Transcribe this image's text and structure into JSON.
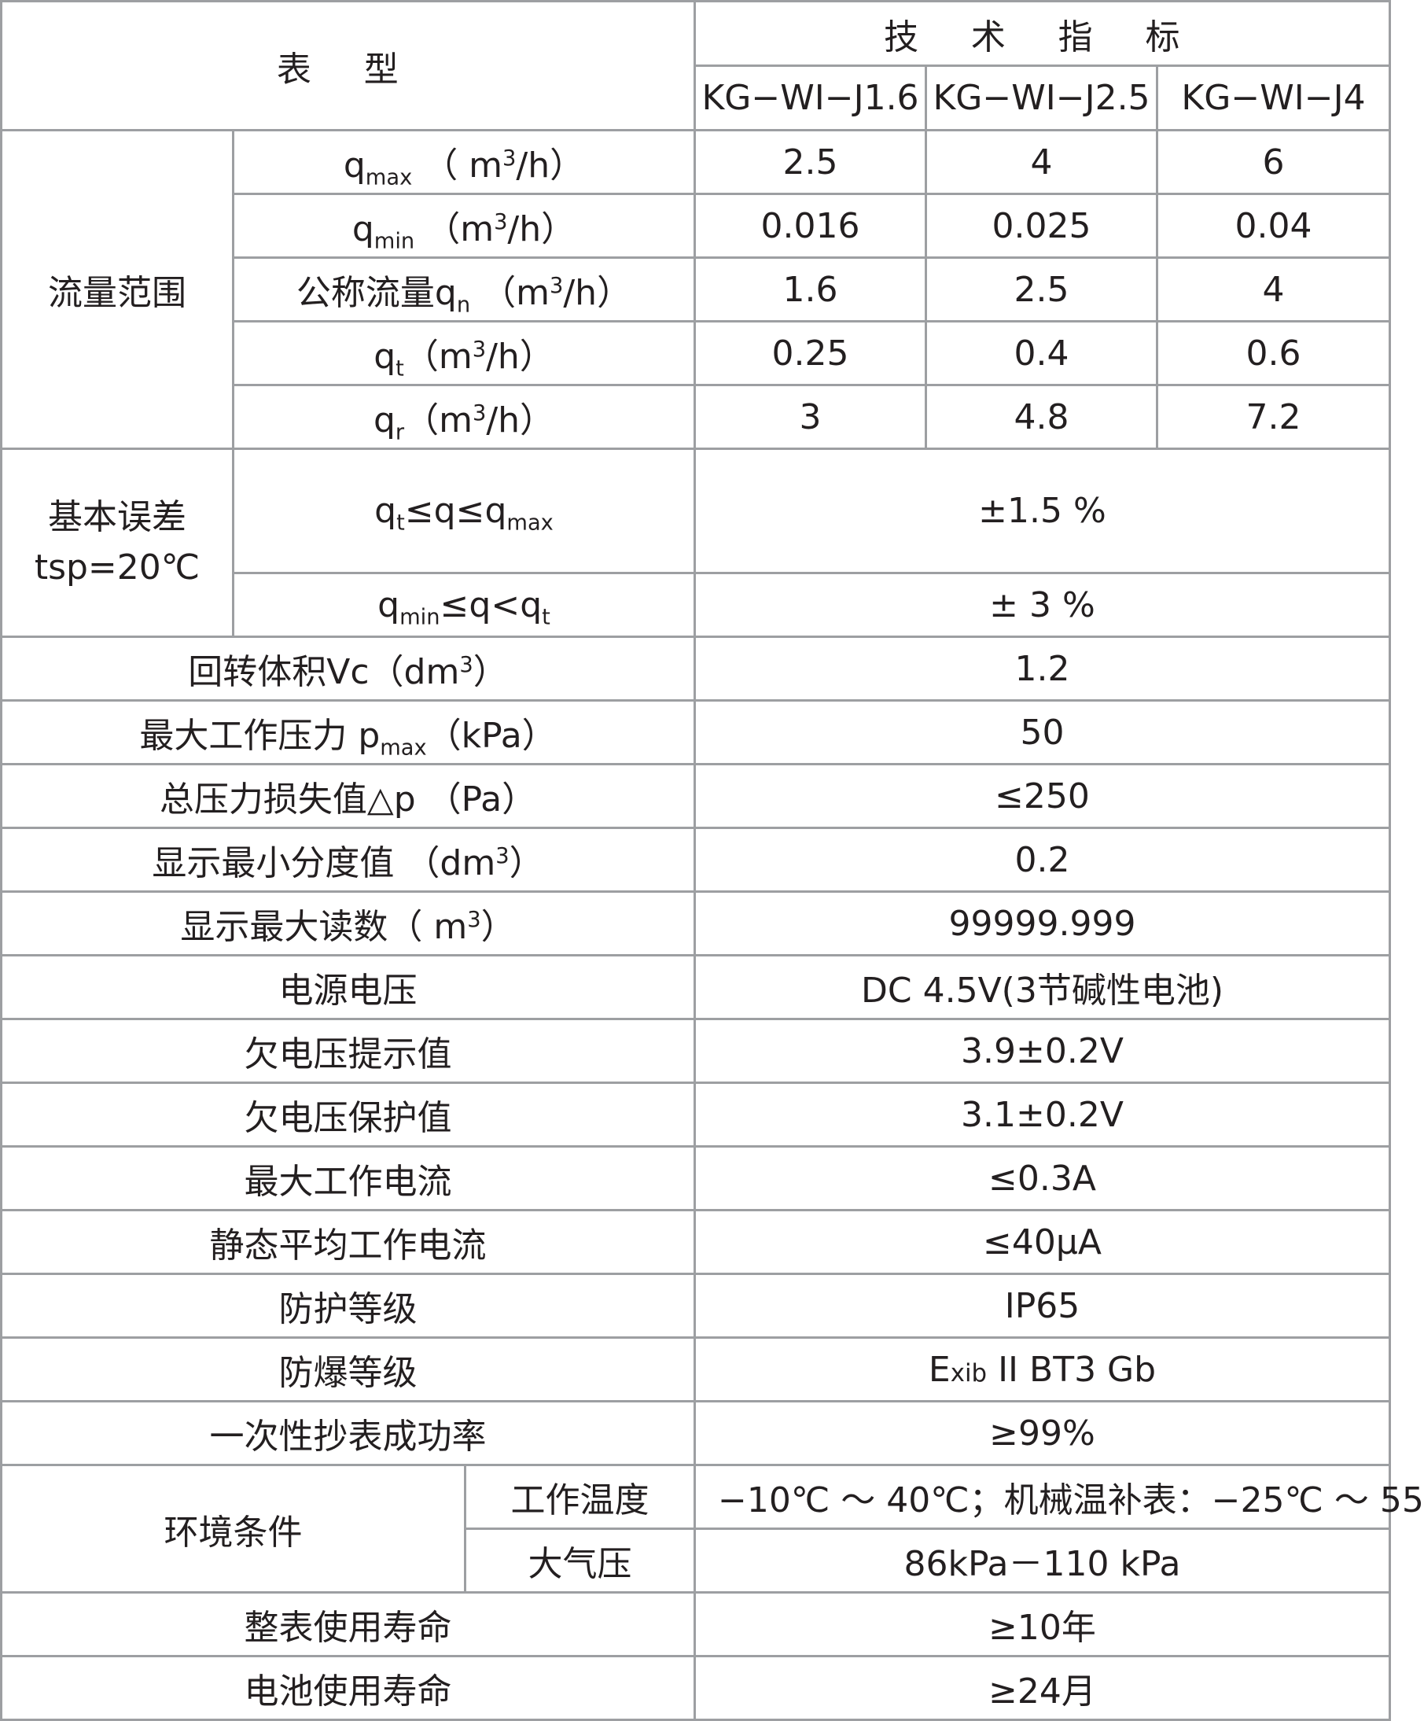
{
  "header": {
    "type_label": "表 型",
    "spec_label": "技 术 指 标",
    "models": [
      "KG−WI−J1.6",
      "KG−WI−J2.5",
      "KG−WI−J4"
    ]
  },
  "flow": {
    "group_label": "流量范围",
    "rows": [
      {
        "sym": "q",
        "sub": "max",
        "unit_pre": " （ m",
        "sup": "3",
        "unit_post": "/h）",
        "prefix": "",
        "values": [
          "2.5",
          "4",
          "6"
        ]
      },
      {
        "sym": "q",
        "sub": "min",
        "unit_pre": " （m",
        "sup": "3",
        "unit_post": "/h）",
        "prefix": "",
        "values": [
          "0.016",
          "0.025",
          "0.04"
        ]
      },
      {
        "sym": "q",
        "sub": "n",
        "unit_pre": " （m",
        "sup": "3",
        "unit_post": "/h）",
        "prefix": "公称流量",
        "values": [
          "1.6",
          "2.5",
          "4"
        ]
      },
      {
        "sym": "q",
        "sub": "t",
        "unit_pre": "（m",
        "sup": "3",
        "unit_post": "/h）",
        "prefix": "",
        "values": [
          "0.25",
          "0.4",
          "0.6"
        ]
      },
      {
        "sym": "q",
        "sub": "r",
        "unit_pre": "（m",
        "sup": "3",
        "unit_post": "/h）",
        "prefix": "",
        "values": [
          "3",
          "4.8",
          "7.2"
        ]
      }
    ]
  },
  "error": {
    "group_label_line1": "基本误差",
    "group_label_line2": "tsp=20℃",
    "rows": [
      {
        "c1_a": "q",
        "c1_sub1": "t",
        "c1_b": "≤q≤q",
        "c1_sub2": "max",
        "value": "±1.5 %"
      },
      {
        "c1_a": "q",
        "c1_sub1": "min",
        "c1_b": "≤q<q",
        "c1_sub2": "t",
        "value": "± 3 %"
      }
    ]
  },
  "specs": {
    "rotation_volume": {
      "label_pre": "回转体积Vc（dm",
      "label_sup": "3",
      "label_post": "）",
      "value": "1.2"
    },
    "max_pressure": {
      "label_pre": "最大工作压力 p",
      "label_sub": "max",
      "label_post": "（kPa）",
      "value": "50"
    },
    "pressure_loss": {
      "label": "总压力损失值△p （Pa）",
      "value": "≤250"
    },
    "min_division": {
      "label_pre": "显示最小分度值 （dm",
      "label_sup": "3",
      "label_post": "）",
      "value": "0.2"
    },
    "max_reading": {
      "label_pre": "显示最大读数（ m",
      "label_sup": "3",
      "label_post": "）",
      "value": "99999.999"
    },
    "supply_voltage": {
      "label": "电源电压",
      "value": "DC 4.5V(3节碱性电池)"
    },
    "undervoltage_alert": {
      "label": "欠电压提示值",
      "value": "3.9±0.2V"
    },
    "undervoltage_protect": {
      "label": "欠电压保护值",
      "value": "3.1±0.2V"
    },
    "max_current": {
      "label": "最大工作电流",
      "value": "≤0.3A"
    },
    "static_current": {
      "label": "静态平均工作电流",
      "value": "≤40μA"
    },
    "protection_class": {
      "label": "防护等级",
      "value": "IP65"
    },
    "explosion_class": {
      "label": "防爆等级",
      "value_e": "E",
      "value_xib": "xib",
      "value_rest": " II BT3 Gb"
    },
    "read_success": {
      "label": "一次性抄表成功率",
      "value": "≥99%"
    }
  },
  "environment": {
    "group_label": "环境条件",
    "work_temp_label": "工作温度",
    "work_temp_value": "−10℃ ～ 40℃；机械温补表：−25℃ ～ 55",
    "pressure_label": "大气压",
    "pressure_value": "86kPa－110 kPa"
  },
  "life": {
    "meter_label": "整表使用寿命",
    "meter_value": "≥10年",
    "battery_label": "电池使用寿命",
    "battery_value": "≥24月"
  }
}
